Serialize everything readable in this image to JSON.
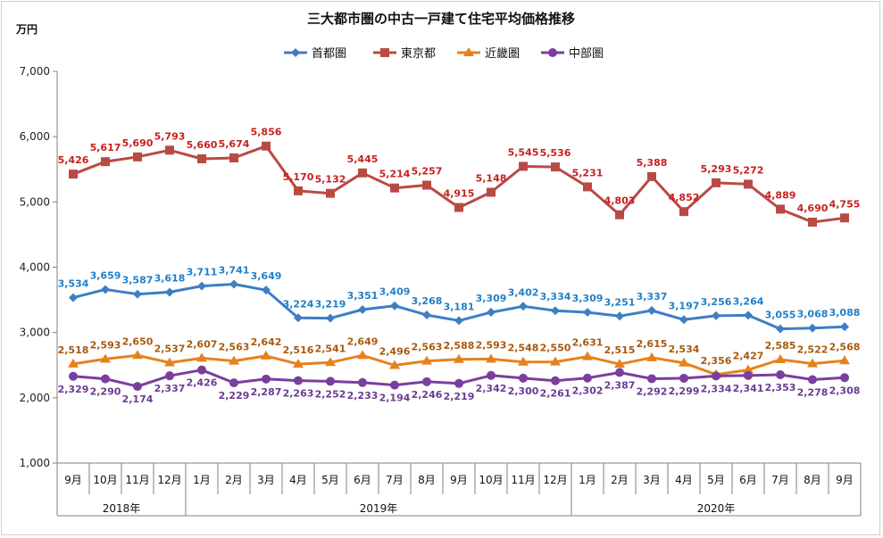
{
  "chart_data": {
    "type": "line",
    "title": "三大都市圏の中古一戸建て住宅平均価格推移",
    "ylabel": "万円",
    "ylim": [
      1000,
      7000
    ],
    "yticks": [
      "1,000",
      "2,000",
      "3,000",
      "4,000",
      "5,000",
      "6,000",
      "7,000"
    ],
    "ytick_values": [
      1000,
      2000,
      3000,
      4000,
      5000,
      6000,
      7000
    ],
    "categories": [
      "9月",
      "10月",
      "11月",
      "12月",
      "1月",
      "2月",
      "3月",
      "4月",
      "5月",
      "6月",
      "7月",
      "8月",
      "9月",
      "10月",
      "11月",
      "12月",
      "1月",
      "2月",
      "3月",
      "4月",
      "5月",
      "6月",
      "7月",
      "8月",
      "9月"
    ],
    "years": [
      {
        "label": "2018年",
        "start": 0,
        "end": 3
      },
      {
        "label": "2019年",
        "start": 4,
        "end": 15
      },
      {
        "label": "2020年",
        "start": 16,
        "end": 24
      }
    ],
    "legend_position": "top-center",
    "series": [
      {
        "name": "首都圏",
        "color": "#3f7ec4",
        "label_color": "#1f7fc8",
        "marker": "diamond",
        "label_pos": "above",
        "values": [
          3534,
          3659,
          3587,
          3618,
          3711,
          3741,
          3649,
          3224,
          3219,
          3351,
          3409,
          3268,
          3181,
          3309,
          3402,
          3334,
          3309,
          3251,
          3337,
          3197,
          3256,
          3264,
          3055,
          3068,
          3088
        ]
      },
      {
        "name": "東京都",
        "color": "#b94a43",
        "label_color": "#c8201e",
        "marker": "square",
        "label_pos": "above",
        "values": [
          5426,
          5617,
          5690,
          5793,
          5660,
          5674,
          5856,
          5170,
          5132,
          5445,
          5214,
          5257,
          4915,
          5148,
          5545,
          5536,
          5231,
          4803,
          5388,
          4852,
          5293,
          5272,
          4889,
          4690,
          4755
        ]
      },
      {
        "name": "近畿圏",
        "color": "#e6821e",
        "label_color": "#a8590c",
        "marker": "triangle",
        "label_pos": "above",
        "values": [
          2518,
          2593,
          2650,
          2537,
          2607,
          2563,
          2642,
          2516,
          2541,
          2649,
          2496,
          2563,
          2588,
          2593,
          2548,
          2550,
          2631,
          2515,
          2615,
          2534,
          2356,
          2427,
          2585,
          2522,
          2568
        ]
      },
      {
        "name": "中部圏",
        "color": "#7a3f9e",
        "label_color": "#6b3a93",
        "marker": "circle",
        "label_pos": "below",
        "values": [
          2329,
          2290,
          2174,
          2337,
          2426,
          2229,
          2287,
          2263,
          2252,
          2233,
          2194,
          2246,
          2219,
          2342,
          2300,
          2261,
          2302,
          2387,
          2292,
          2299,
          2334,
          2341,
          2353,
          2278,
          2308
        ]
      }
    ]
  }
}
